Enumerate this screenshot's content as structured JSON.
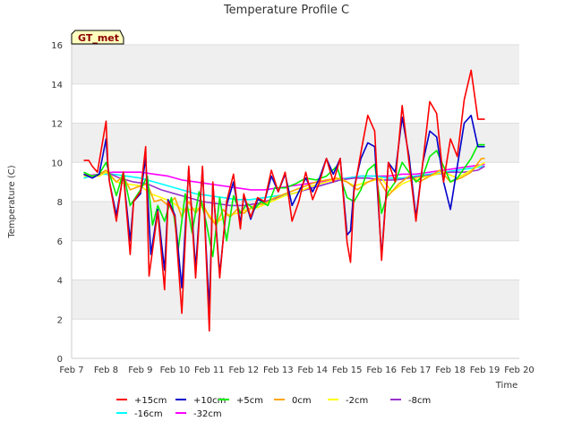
{
  "chart_data": {
    "type": "line",
    "title": "Temperature Profile C",
    "xlabel": "Time",
    "ylabel": "Temperature (C)",
    "badge": "GT_met",
    "ylim": [
      0,
      16
    ],
    "yticks": [
      0,
      2,
      4,
      6,
      8,
      10,
      12,
      14,
      16
    ],
    "xlim": [
      7,
      20
    ],
    "xticks": [
      7,
      8,
      9,
      10,
      11,
      12,
      13,
      14,
      15,
      16,
      17,
      18,
      19,
      20
    ],
    "xtick_labels": [
      "Feb 7",
      "Feb 8",
      "Feb 9",
      "Feb 10",
      "Feb 11",
      "Feb 12",
      "Feb 13",
      "Feb 14",
      "Feb 15",
      "Feb 16",
      "Feb 17",
      "Feb 18",
      "Feb 19",
      "Feb 20"
    ],
    "grid": "horizontal bands",
    "legend_position": "bottom",
    "series": [
      {
        "name": "+15cm",
        "color": "#ff0000",
        "x": [
          7.35,
          7.5,
          7.6,
          7.75,
          8.0,
          8.05,
          8.1,
          8.3,
          8.5,
          8.7,
          8.8,
          9.0,
          9.15,
          9.25,
          9.5,
          9.7,
          9.8,
          10.0,
          10.2,
          10.4,
          10.6,
          10.8,
          10.9,
          11.0,
          11.1,
          11.3,
          11.5,
          11.7,
          11.9,
          12.0,
          12.2,
          12.4,
          12.6,
          12.8,
          13.0,
          13.2,
          13.4,
          13.6,
          13.8,
          14.0,
          14.2,
          14.4,
          14.6,
          14.8,
          15.0,
          15.1,
          15.2,
          15.4,
          15.6,
          15.8,
          16.0,
          16.2,
          16.4,
          16.6,
          16.8,
          17.0,
          17.2,
          17.4,
          17.6,
          17.8,
          18.0,
          18.2,
          18.4,
          18.6,
          18.8,
          19.0
        ],
        "y": [
          10.1,
          10.1,
          9.8,
          9.5,
          12.1,
          10.0,
          9.0,
          7.0,
          9.5,
          5.3,
          8.0,
          8.5,
          10.8,
          4.2,
          7.5,
          3.5,
          8.0,
          7.2,
          2.3,
          9.8,
          4.1,
          9.8,
          5.5,
          1.4,
          9.0,
          4.1,
          8.0,
          9.4,
          6.6,
          8.4,
          7.2,
          8.2,
          8.0,
          9.6,
          8.5,
          9.5,
          7.0,
          8.0,
          9.5,
          8.1,
          9.0,
          10.2,
          9.0,
          10.2,
          5.9,
          4.9,
          8.5,
          10.5,
          12.4,
          11.6,
          5.0,
          10.0,
          9.0,
          12.9,
          10.0,
          7.0,
          10.0,
          13.1,
          12.5,
          9.0,
          11.2,
          10.3,
          13.2,
          14.7,
          12.2,
          12.2
        ]
      },
      {
        "name": "+10cm",
        "color": "#0000cc",
        "x": [
          7.35,
          7.6,
          7.8,
          8.0,
          8.05,
          8.1,
          8.3,
          8.5,
          8.7,
          8.8,
          9.0,
          9.15,
          9.3,
          9.5,
          9.7,
          9.8,
          10.0,
          10.2,
          10.4,
          10.6,
          10.8,
          10.9,
          11.0,
          11.1,
          11.3,
          11.5,
          11.7,
          11.9,
          12.0,
          12.2,
          12.4,
          12.6,
          12.8,
          13.0,
          13.2,
          13.4,
          13.6,
          13.8,
          14.0,
          14.2,
          14.4,
          14.6,
          14.8,
          15.0,
          15.1,
          15.2,
          15.4,
          15.6,
          15.8,
          16.0,
          16.2,
          16.4,
          16.6,
          16.8,
          17.0,
          17.2,
          17.4,
          17.6,
          17.8,
          18.0,
          18.2,
          18.4,
          18.6,
          18.8,
          19.0
        ],
        "y": [
          9.4,
          9.2,
          9.4,
          11.2,
          9.8,
          9.0,
          7.3,
          9.4,
          6.0,
          8.0,
          8.4,
          10.2,
          5.3,
          7.6,
          4.5,
          8.1,
          7.3,
          3.6,
          9.7,
          4.6,
          9.7,
          5.8,
          2.5,
          8.9,
          4.3,
          7.8,
          9.0,
          6.9,
          8.3,
          7.1,
          8.1,
          8.0,
          9.3,
          8.5,
          9.4,
          7.8,
          8.5,
          9.2,
          8.5,
          9.2,
          10.2,
          9.4,
          10.2,
          6.3,
          6.5,
          8.7,
          10.2,
          11.0,
          10.8,
          5.2,
          10.0,
          9.5,
          12.3,
          10.3,
          7.2,
          10.0,
          11.6,
          11.3,
          9.0,
          7.6,
          9.8,
          12.0,
          12.4,
          10.8,
          10.8
        ]
      },
      {
        "name": "+5cm",
        "color": "#00ee00",
        "x": [
          7.35,
          7.6,
          7.8,
          8.0,
          8.3,
          8.5,
          8.7,
          9.0,
          9.2,
          9.35,
          9.5,
          9.7,
          9.9,
          10.1,
          10.3,
          10.5,
          10.7,
          10.9,
          11.1,
          11.3,
          11.5,
          11.7,
          11.9,
          12.1,
          12.3,
          12.5,
          12.7,
          12.9,
          13.2,
          13.5,
          13.8,
          14.1,
          14.4,
          14.7,
          15.0,
          15.2,
          15.4,
          15.6,
          15.8,
          16.0,
          16.2,
          16.4,
          16.6,
          16.8,
          17.0,
          17.2,
          17.4,
          17.6,
          17.8,
          18.0,
          18.2,
          18.4,
          18.6,
          18.8,
          19.0
        ],
        "y": [
          9.5,
          9.3,
          9.4,
          10.0,
          8.3,
          9.5,
          7.8,
          8.6,
          9.3,
          6.8,
          7.8,
          7.0,
          8.2,
          5.6,
          8.4,
          6.4,
          8.5,
          7.0,
          5.2,
          8.2,
          6.0,
          8.3,
          7.4,
          7.9,
          7.6,
          8.0,
          7.8,
          8.7,
          8.7,
          8.9,
          9.2,
          9.1,
          9.3,
          9.8,
          8.2,
          8.0,
          8.6,
          9.6,
          9.9,
          7.4,
          8.5,
          9.0,
          10.0,
          9.5,
          9.0,
          9.3,
          10.3,
          10.6,
          9.8,
          9.0,
          9.2,
          9.7,
          10.2,
          10.9,
          10.9
        ]
      },
      {
        "name": "0cm",
        "color": "#ffa500",
        "x": [
          7.35,
          7.6,
          7.8,
          8.0,
          8.3,
          8.5,
          8.7,
          9.0,
          9.2,
          9.4,
          9.6,
          9.8,
          10.0,
          10.2,
          10.4,
          10.6,
          10.8,
          11.0,
          11.2,
          11.4,
          11.6,
          11.8,
          12.0,
          12.3,
          12.6,
          12.9,
          13.2,
          13.5,
          13.8,
          14.1,
          14.4,
          14.7,
          15.0,
          15.3,
          15.6,
          15.9,
          16.2,
          16.5,
          16.8,
          17.1,
          17.4,
          17.7,
          18.0,
          18.3,
          18.6,
          18.9,
          19.0
        ],
        "y": [
          9.4,
          9.3,
          9.4,
          9.6,
          9.0,
          9.3,
          8.6,
          8.8,
          8.9,
          8.0,
          8.1,
          7.8,
          8.2,
          7.2,
          8.0,
          7.4,
          7.9,
          7.2,
          6.8,
          7.6,
          7.2,
          7.6,
          7.4,
          7.8,
          7.9,
          8.2,
          8.4,
          8.6,
          8.8,
          9.0,
          9.1,
          9.2,
          9.0,
          8.6,
          9.0,
          9.2,
          8.3,
          8.9,
          9.3,
          9.0,
          9.3,
          9.6,
          9.0,
          9.2,
          9.5,
          10.2,
          10.2
        ]
      },
      {
        "name": "-2cm",
        "color": "#ffff00",
        "x": [
          7.35,
          7.6,
          7.8,
          8.0,
          8.3,
          8.6,
          9.0,
          9.3,
          9.6,
          9.9,
          10.2,
          10.5,
          10.8,
          11.0,
          11.2,
          11.5,
          11.8,
          12.1,
          12.4,
          12.8,
          13.2,
          13.6,
          14.0,
          14.4,
          14.8,
          15.2,
          15.6,
          16.0,
          16.3,
          16.6,
          17.0,
          17.4,
          17.8,
          18.2,
          18.6,
          19.0
        ],
        "y": [
          9.3,
          9.3,
          9.3,
          9.5,
          9.0,
          8.9,
          8.8,
          8.4,
          8.2,
          8.0,
          7.6,
          7.6,
          7.7,
          7.3,
          6.9,
          7.3,
          7.4,
          7.6,
          7.7,
          8.0,
          8.3,
          8.5,
          8.8,
          9.0,
          9.2,
          8.8,
          9.0,
          9.2,
          8.5,
          8.9,
          9.2,
          9.3,
          9.5,
          9.2,
          9.6,
          10.0
        ]
      },
      {
        "name": "-8cm",
        "color": "#9932cc",
        "x": [
          7.35,
          7.7,
          8.0,
          8.4,
          8.8,
          9.2,
          9.6,
          10.0,
          10.4,
          10.8,
          11.2,
          11.6,
          12.0,
          12.4,
          12.8,
          13.2,
          13.6,
          14.0,
          14.4,
          14.8,
          15.2,
          15.6,
          16.0,
          16.4,
          16.8,
          17.2,
          17.6,
          18.0,
          18.4,
          18.8,
          19.0
        ],
        "y": [
          9.3,
          9.3,
          9.5,
          9.2,
          9.0,
          8.9,
          8.6,
          8.4,
          8.2,
          8.0,
          7.9,
          7.8,
          7.8,
          7.9,
          8.1,
          8.3,
          8.5,
          8.7,
          8.9,
          9.1,
          9.2,
          9.2,
          9.1,
          9.1,
          9.2,
          9.3,
          9.4,
          9.5,
          9.5,
          9.6,
          9.8
        ]
      },
      {
        "name": "-16cm",
        "color": "#00ffff",
        "x": [
          7.35,
          7.8,
          8.2,
          8.6,
          9.0,
          9.4,
          9.8,
          10.2,
          10.6,
          11.0,
          11.4,
          11.8,
          12.2,
          12.6,
          13.0,
          13.4,
          13.8,
          14.2,
          14.6,
          15.0,
          15.4,
          15.8,
          16.2,
          16.6,
          17.0,
          17.4,
          17.8,
          18.2,
          18.6,
          19.0
        ],
        "y": [
          9.2,
          9.4,
          9.4,
          9.3,
          9.2,
          9.0,
          8.8,
          8.6,
          8.4,
          8.3,
          8.2,
          8.1,
          8.1,
          8.2,
          8.3,
          8.4,
          8.6,
          8.8,
          9.0,
          9.2,
          9.3,
          9.3,
          9.2,
          9.2,
          9.3,
          9.4,
          9.5,
          9.6,
          9.7,
          9.8
        ]
      },
      {
        "name": "-32cm",
        "color": "#ff00ff",
        "x": [
          7.35,
          7.8,
          8.2,
          8.6,
          9.0,
          9.4,
          9.8,
          10.2,
          10.6,
          11.0,
          11.4,
          11.8,
          12.2,
          12.6,
          13.0,
          13.4,
          13.8,
          14.2,
          14.6,
          15.0,
          15.4,
          15.8,
          16.2,
          16.6,
          17.0,
          17.4,
          17.8,
          18.2,
          18.6,
          19.0
        ],
        "y": [
          9.3,
          9.4,
          9.5,
          9.5,
          9.5,
          9.4,
          9.3,
          9.1,
          9.0,
          8.9,
          8.8,
          8.7,
          8.6,
          8.6,
          8.7,
          8.8,
          8.9,
          9.0,
          9.1,
          9.2,
          9.3,
          9.3,
          9.3,
          9.4,
          9.4,
          9.5,
          9.6,
          9.7,
          9.8,
          9.9
        ]
      }
    ]
  }
}
